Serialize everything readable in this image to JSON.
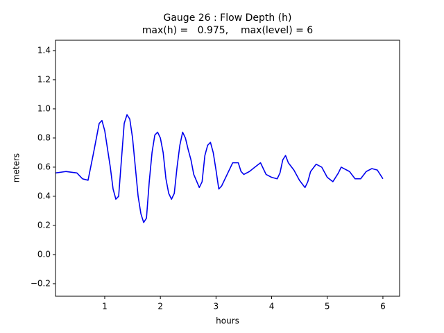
{
  "chart_data": {
    "type": "line",
    "title": "Gauge 26 : Flow Depth (h)",
    "subtitle": "max(h) =   0.975,    max(level) = 6",
    "xlabel": "hours",
    "ylabel": "meters",
    "xlim": [
      0.115,
      6.3
    ],
    "ylim": [
      -0.286,
      1.471
    ],
    "xticks": [
      1,
      2,
      3,
      4,
      5,
      6
    ],
    "yticks": [
      {
        "value": -0.2,
        "label": "−0.2"
      },
      {
        "value": 0,
        "label": "0.0"
      },
      0.2,
      0.4,
      0.6,
      0.8,
      {
        "value": 1,
        "label": "1.0"
      },
      1.2,
      1.4
    ],
    "grid": false,
    "series": [
      {
        "name": "h",
        "color": "#0000ee",
        "x": [
          0.115,
          0.3,
          0.5,
          0.6,
          0.7,
          0.8,
          0.9,
          0.95,
          1.0,
          1.1,
          1.15,
          1.2,
          1.25,
          1.3,
          1.35,
          1.4,
          1.45,
          1.5,
          1.55,
          1.6,
          1.65,
          1.7,
          1.75,
          1.8,
          1.85,
          1.9,
          1.95,
          2.0,
          2.05,
          2.1,
          2.15,
          2.2,
          2.25,
          2.3,
          2.35,
          2.4,
          2.45,
          2.5,
          2.55,
          2.6,
          2.7,
          2.75,
          2.8,
          2.85,
          2.9,
          2.95,
          3.0,
          3.05,
          3.1,
          3.2,
          3.3,
          3.4,
          3.45,
          3.5,
          3.6,
          3.7,
          3.8,
          3.9,
          4.0,
          4.1,
          4.15,
          4.2,
          4.25,
          4.3,
          4.4,
          4.5,
          4.6,
          4.65,
          4.7,
          4.8,
          4.9,
          5.0,
          5.1,
          5.2,
          5.25,
          5.3,
          5.4,
          5.5,
          5.6,
          5.7,
          5.8,
          5.9,
          6.0
        ],
        "values": [
          0.56,
          0.57,
          0.56,
          0.52,
          0.51,
          0.7,
          0.9,
          0.92,
          0.85,
          0.6,
          0.45,
          0.38,
          0.4,
          0.65,
          0.9,
          0.96,
          0.93,
          0.8,
          0.6,
          0.4,
          0.28,
          0.22,
          0.25,
          0.5,
          0.7,
          0.82,
          0.84,
          0.8,
          0.7,
          0.52,
          0.42,
          0.38,
          0.42,
          0.6,
          0.75,
          0.84,
          0.8,
          0.72,
          0.65,
          0.55,
          0.46,
          0.5,
          0.68,
          0.75,
          0.77,
          0.7,
          0.58,
          0.45,
          0.47,
          0.55,
          0.63,
          0.63,
          0.57,
          0.55,
          0.57,
          0.6,
          0.63,
          0.55,
          0.53,
          0.52,
          0.56,
          0.65,
          0.68,
          0.63,
          0.58,
          0.51,
          0.46,
          0.5,
          0.57,
          0.62,
          0.6,
          0.53,
          0.5,
          0.56,
          0.6,
          0.59,
          0.57,
          0.52,
          0.52,
          0.57,
          0.59,
          0.58,
          0.52
        ]
      }
    ]
  }
}
